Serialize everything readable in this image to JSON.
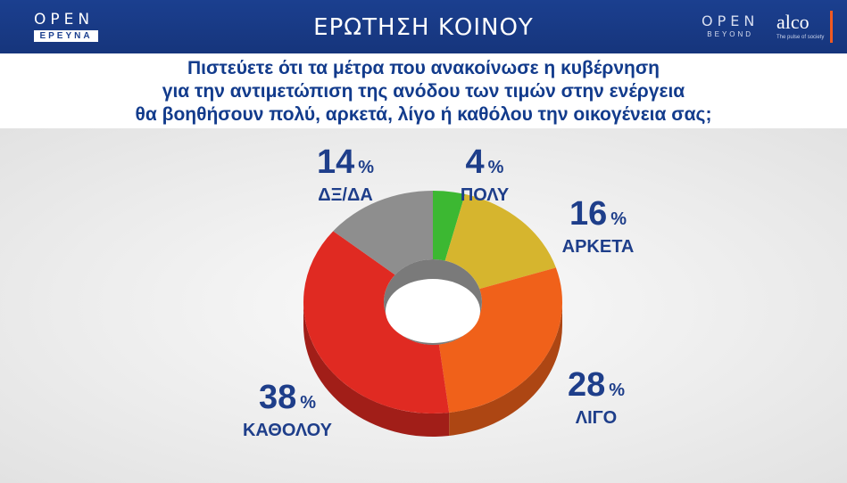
{
  "header": {
    "logo_left_word": "OPEN",
    "logo_left_sub": "ΕΡΕΥΝΑ",
    "title": "ΕΡΩΤΗΣΗ ΚΟΙΝΟΥ",
    "logo_beyond_word": "OPEN",
    "logo_beyond_sub": "BEYOND",
    "logo_alco_word": "alco",
    "logo_alco_sub": "The pulse of society"
  },
  "question": {
    "line1": "Πιστεύετε ότι τα μέτρα που ανακοίνωσε η κυβέρνηση",
    "line2": "για την αντιμετώπιση της ανόδου των τιμών στην ενέργεια",
    "line3": "θα βοηθήσουν πολύ, αρκετά, λίγο ή καθόλου την οικογένεια σας;"
  },
  "chart_data": {
    "type": "pie",
    "categories": [
      "ΠΟΛΥ",
      "ΑΡΚΕΤΑ",
      "ΛΙΓΟ",
      "ΚΑΘΟΛΟΥ",
      "ΔΞ/ΔΑ"
    ],
    "values": [
      4,
      16,
      28,
      38,
      14
    ],
    "unit": "%",
    "colors": [
      "#3cb832",
      "#d6b52e",
      "#f0611a",
      "#e02a22",
      "#8e8e8e"
    ],
    "labels": [
      {
        "value": "4",
        "name": "ΠΟΛΥ"
      },
      {
        "value": "16",
        "name": "ΑΡΚΕΤΑ"
      },
      {
        "value": "28",
        "name": "ΛΙΓΟ"
      },
      {
        "value": "38",
        "name": "ΚΑΘΟΛΟΥ"
      },
      {
        "value": "14",
        "name": "ΔΞ/ΔΑ"
      }
    ]
  }
}
